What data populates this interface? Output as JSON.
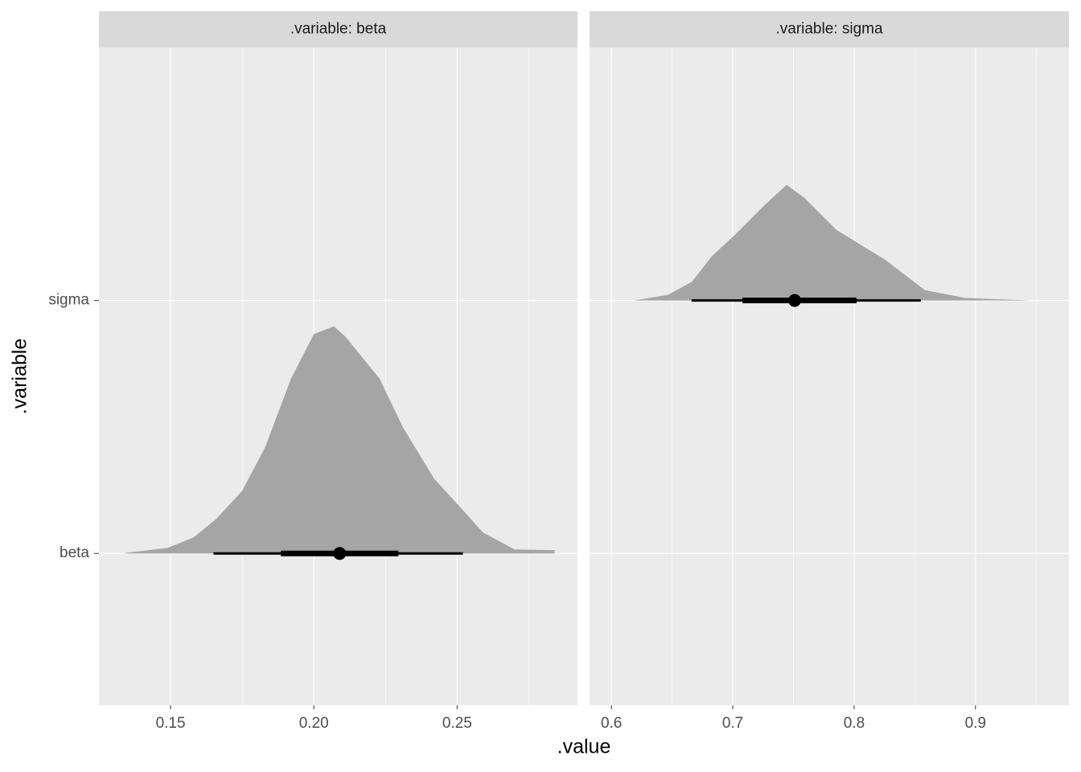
{
  "chart_data": {
    "type": "halfeye",
    "x_label": ".value",
    "y_label": ".variable",
    "categories": [
      "beta",
      "sigma"
    ],
    "ylim": [
      0.4,
      3.0
    ],
    "slab_color": "#a5a5a5",
    "interval_color": "#000000",
    "grid": true,
    "facets": [
      {
        "title": ".variable: beta",
        "xlim": [
          0.125,
          0.292
        ],
        "xticks": [
          0.15,
          {
            "value": 0.2,
            "label": "0.20"
          },
          0.25
        ],
        "xminor": [
          0.175,
          0.225,
          0.275
        ],
        "x": [
          0.133,
          0.149,
          0.158,
          0.166,
          0.175,
          0.183,
          0.192,
          0.2,
          0.207,
          0.211,
          0.223,
          0.231,
          0.242,
          0.251,
          0.259,
          0.27,
          0.284
        ],
        "density": [
          0,
          0.022,
          0.063,
          0.137,
          0.248,
          0.42,
          0.69,
          0.867,
          0.898,
          0.857,
          0.69,
          0.5,
          0.295,
          0.184,
          0.083,
          0.016,
          0.013
        ],
        "median": 0.209,
        "interval_66": [
          0.1885,
          0.2295
        ],
        "interval_95": [
          0.165,
          0.252
        ]
      },
      {
        "title": ".variable: sigma",
        "xlim": [
          0.582,
          0.977
        ],
        "xticks": [
          0.6,
          0.7,
          0.8,
          0.9
        ],
        "xminor": [
          0.65,
          0.75,
          0.85,
          0.95
        ],
        "x": [
          0.6185,
          0.6464,
          0.6662,
          0.6828,
          0.7026,
          0.7258,
          0.7444,
          0.7589,
          0.7854,
          0.8252,
          0.8583,
          0.8914,
          0.9457
        ],
        "density": [
          0,
          0.022,
          0.073,
          0.175,
          0.263,
          0.375,
          0.457,
          0.406,
          0.279,
          0.162,
          0.041,
          0.01,
          0
        ],
        "median": 0.751,
        "interval_66": [
          0.708,
          0.802
        ],
        "interval_95": [
          0.666,
          0.855
        ]
      }
    ]
  }
}
